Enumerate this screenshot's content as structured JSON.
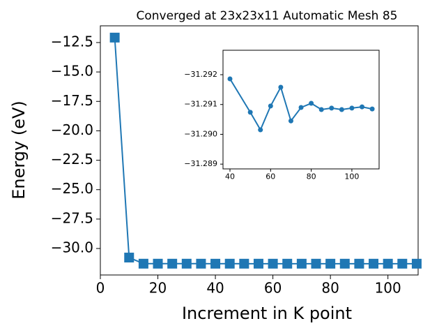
{
  "chart_data": [
    {
      "type": "line",
      "title": "Converged at 23x23x11 Automatic Mesh 85",
      "x_label": "Increment in K point",
      "y_label": "Energy (eV)",
      "x": [
        5,
        10,
        15,
        20,
        25,
        30,
        35,
        40,
        45,
        50,
        55,
        60,
        65,
        70,
        75,
        80,
        85,
        90,
        95,
        100,
        105,
        110
      ],
      "series": [
        {
          "color": "#1f77b4",
          "marker": "square",
          "values": [
            -12.08,
            -30.77,
            -31.29,
            -31.29,
            -31.29,
            -31.29,
            -31.29,
            -31.29186,
            -31.29,
            -31.29074,
            -31.29015,
            -31.29095,
            -31.29158,
            -31.29045,
            -31.2909,
            -31.29104,
            -31.29083,
            -31.29088,
            -31.29083,
            -31.29088,
            -31.29092,
            -31.29085
          ]
        }
      ],
      "xlim": [
        0,
        110.5
      ],
      "ylim": [
        -32.25,
        -11.08
      ],
      "xticks": [
        0,
        20,
        40,
        60,
        80,
        100
      ],
      "yticks": [
        {
          "value": -12.5,
          "label": "−12.5"
        },
        {
          "value": -15.0,
          "label": "−15.0"
        },
        {
          "value": -17.5,
          "label": "−17.5"
        },
        {
          "value": -20.0,
          "label": "−20.0"
        },
        {
          "value": -22.5,
          "label": "−22.5"
        },
        {
          "value": -25.0,
          "label": "−25.0"
        },
        {
          "value": -27.5,
          "label": "−27.5"
        },
        {
          "value": -30.0,
          "label": "−30.0"
        }
      ]
    },
    {
      "type": "line",
      "x": [
        40,
        50,
        55,
        60,
        65,
        70,
        75,
        80,
        85,
        90,
        95,
        100,
        105,
        110
      ],
      "series": [
        {
          "color": "#1f77b4",
          "marker": "circle",
          "values": [
            -31.29186,
            -31.29074,
            -31.29015,
            -31.29095,
            -31.29158,
            -31.29045,
            -31.2909,
            -31.29104,
            -31.29083,
            -31.29088,
            -31.29083,
            -31.29088,
            -31.29092,
            -31.29085
          ]
        }
      ],
      "xlim": [
        36.57,
        113.4
      ],
      "ylim": [
        -31.28884,
        -31.29282
      ],
      "xticks": [
        40,
        60,
        80,
        100
      ],
      "yticks": [
        {
          "value": -31.292,
          "label": "−31.292"
        },
        {
          "value": -31.291,
          "label": "−31.291"
        },
        {
          "value": -31.29,
          "label": "−31.290"
        },
        {
          "value": -31.289,
          "label": "−31.289"
        }
      ]
    }
  ]
}
